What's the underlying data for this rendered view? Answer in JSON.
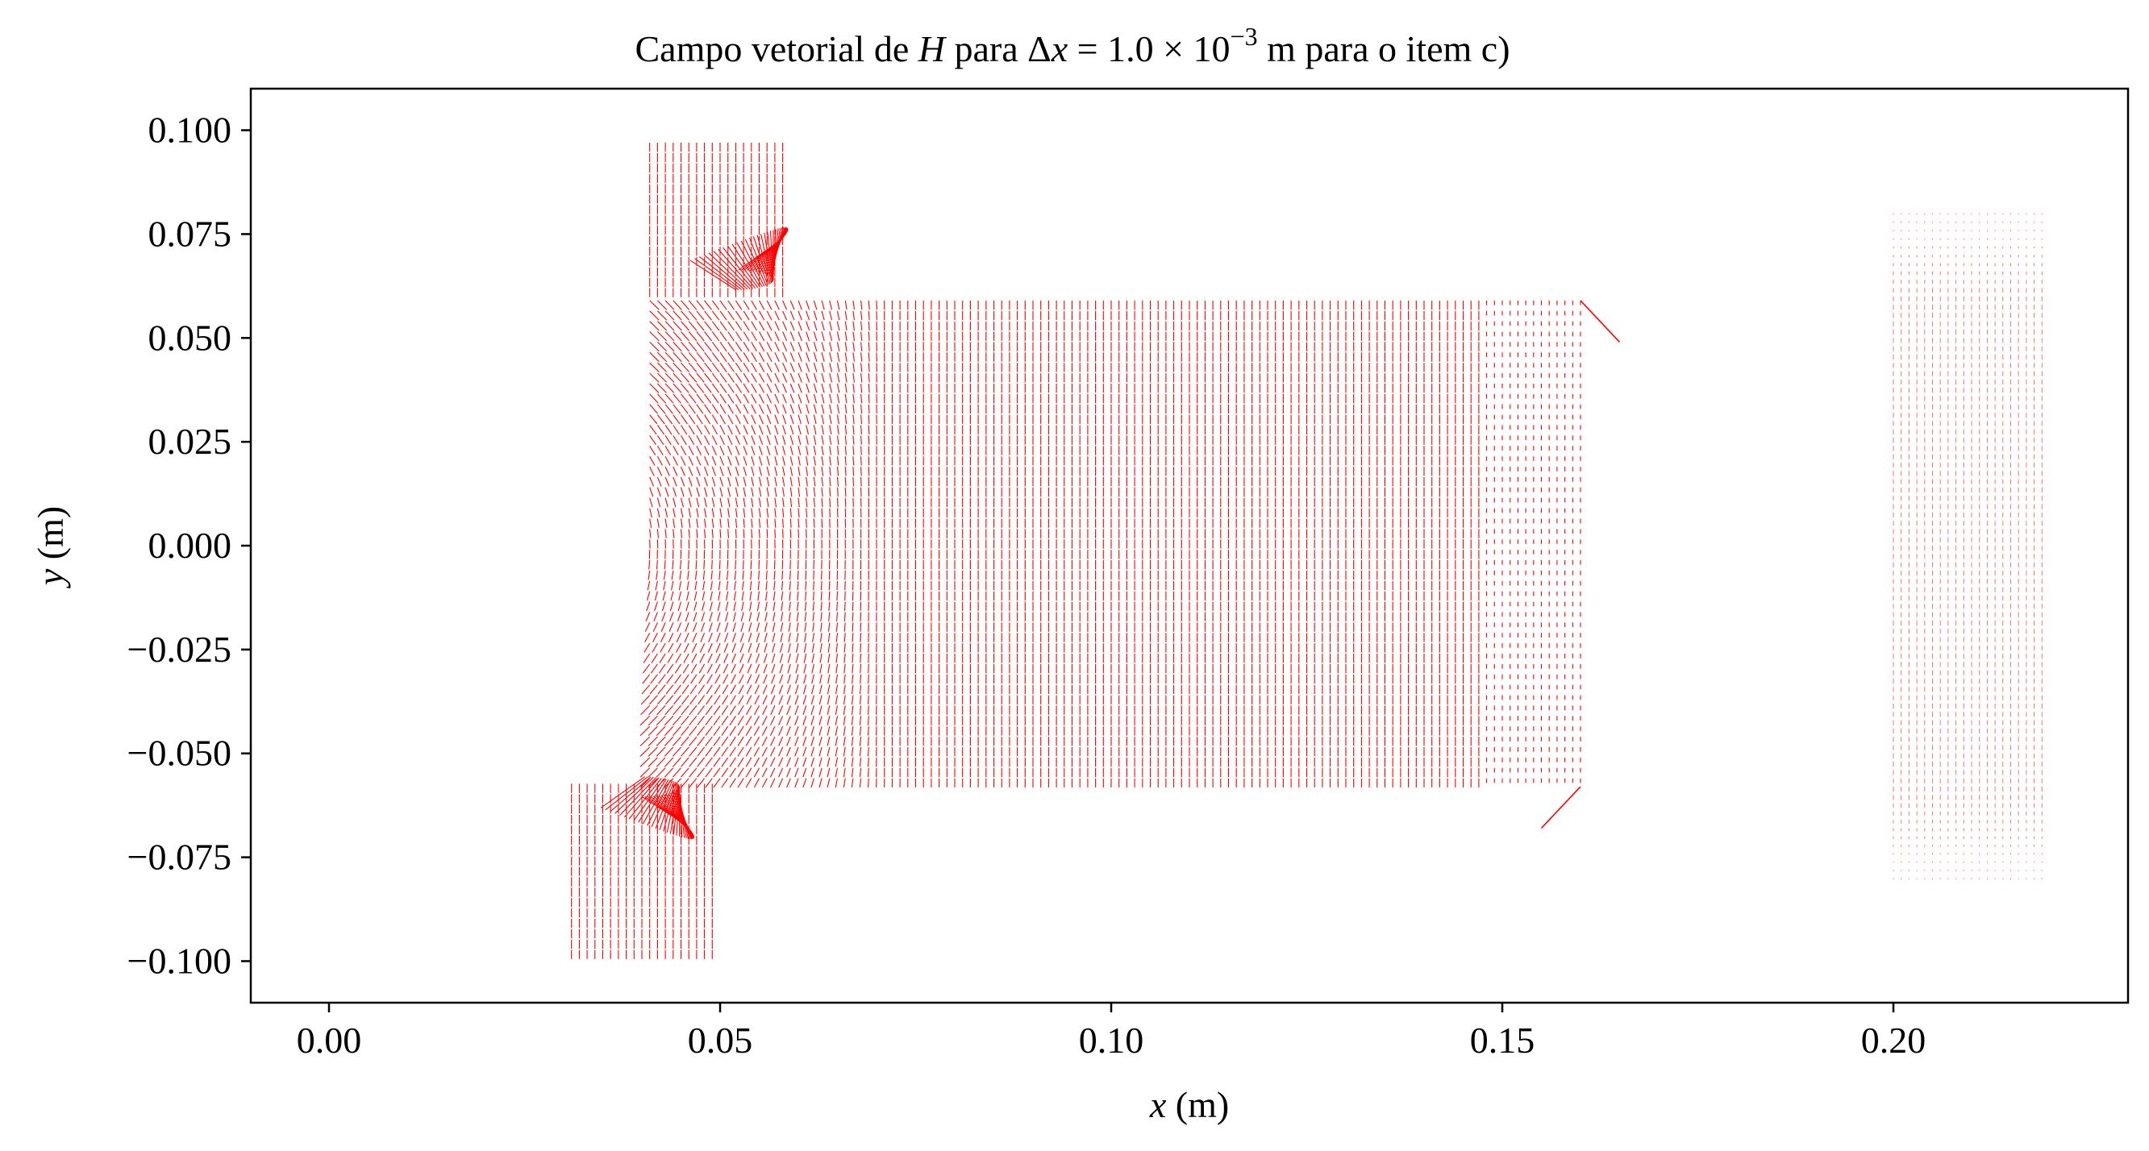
{
  "chart_data": {
    "type": "quiver",
    "title": {
      "prefix": "Campo vetorial de ",
      "var": "H",
      "mid": " para Δ",
      "dx": "x",
      "eq": " = 1.0 × 10",
      "exp": "−3",
      "suffix": " m para o item c)"
    },
    "xlabel": {
      "var": "x",
      "unit": " (m)"
    },
    "ylabel": {
      "var": "y",
      "unit": " (m)"
    },
    "xlim": [
      -0.01,
      0.23
    ],
    "ylim": [
      -0.11,
      0.11
    ],
    "xticks": [
      0.0,
      0.05,
      0.1,
      0.15,
      0.2
    ],
    "xtick_labels": [
      "0.00",
      "0.05",
      "0.10",
      "0.15",
      "0.20"
    ],
    "yticks": [
      0.1,
      0.075,
      0.05,
      0.025,
      0.0,
      -0.025,
      -0.05,
      -0.075,
      -0.1
    ],
    "ytick_labels": [
      "0.100",
      "0.075",
      "0.050",
      "0.025",
      "0.000",
      "−0.025",
      "−0.050",
      "−0.075",
      "−0.100"
    ],
    "grid": false,
    "color": "#ff0000",
    "regions": [
      {
        "name": "upper-leg",
        "x": [
          0.041,
          0.058
        ],
        "y": [
          0.06,
          0.099
        ],
        "field": "vertical-strong"
      },
      {
        "name": "core-top",
        "x": [
          0.041,
          0.16
        ],
        "y": [
          0.06,
          0.06
        ]
      },
      {
        "name": "core-body",
        "x": [
          0.041,
          0.16
        ],
        "y": [
          -0.058,
          0.06
        ],
        "field": "vertical-strong"
      },
      {
        "name": "lower-leg",
        "x": [
          0.031,
          0.049
        ],
        "y": [
          -0.099,
          -0.058
        ],
        "field": "vertical-strong"
      },
      {
        "name": "right-block",
        "x": [
          0.2,
          0.219
        ],
        "y": [
          -0.08,
          0.08
        ],
        "field": "vertical-weak"
      }
    ],
    "annotation_vectors": [
      {
        "x": 0.16,
        "y": 0.059,
        "dx": 0.005,
        "dy": -0.01
      },
      {
        "x": 0.16,
        "y": -0.058,
        "dx": -0.005,
        "dy": -0.01
      }
    ]
  }
}
